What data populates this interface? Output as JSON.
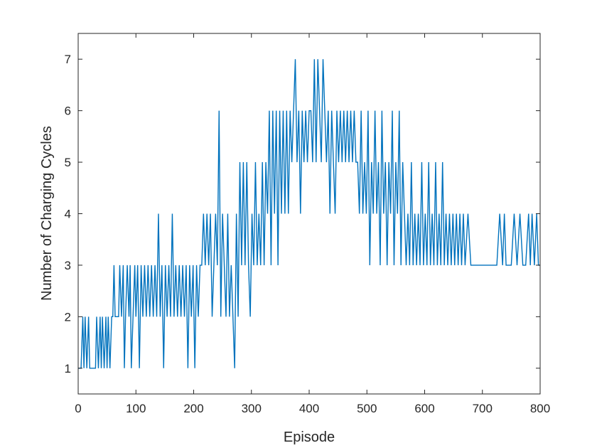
{
  "chart_data": {
    "type": "line",
    "title": "",
    "xlabel": "Episode",
    "ylabel": "Number of Charging Cycles",
    "xlim": [
      0,
      800
    ],
    "ylim": [
      0.5,
      7.5
    ],
    "xticks": [
      0,
      100,
      200,
      300,
      400,
      500,
      600,
      700,
      800
    ],
    "yticks": [
      1,
      2,
      3,
      4,
      5,
      6,
      7
    ],
    "grid": false,
    "legend": "none",
    "series": [
      {
        "color": "#0072BD",
        "x": [
          0,
          5,
          8,
          10,
          12,
          15,
          18,
          20,
          25,
          30,
          32,
          35,
          38,
          40,
          42,
          45,
          48,
          50,
          52,
          55,
          58,
          60,
          62,
          64,
          66,
          70,
          72,
          75,
          78,
          80,
          82,
          85,
          88,
          90,
          92,
          95,
          98,
          100,
          103,
          106,
          109,
          112,
          115,
          118,
          121,
          124,
          127,
          130,
          133,
          136,
          139,
          142,
          145,
          148,
          151,
          154,
          157,
          160,
          163,
          166,
          169,
          172,
          175,
          178,
          181,
          184,
          187,
          190,
          193,
          196,
          199,
          202,
          205,
          208,
          211,
          214,
          217,
          220,
          223,
          226,
          229,
          232,
          235,
          238,
          241,
          244,
          247,
          250,
          253,
          256,
          259,
          262,
          265,
          268,
          271,
          274,
          277,
          280,
          283,
          286,
          289,
          292,
          295,
          298,
          301,
          304,
          307,
          310,
          313,
          316,
          319,
          322,
          325,
          328,
          331,
          334,
          337,
          340,
          343,
          346,
          349,
          352,
          355,
          358,
          361,
          364,
          367,
          370,
          373,
          376,
          379,
          382,
          385,
          388,
          391,
          394,
          397,
          400,
          403,
          406,
          409,
          412,
          415,
          418,
          421,
          424,
          427,
          430,
          433,
          436,
          439,
          442,
          445,
          448,
          451,
          454,
          457,
          460,
          463,
          466,
          469,
          472,
          475,
          478,
          481,
          484,
          487,
          490,
          493,
          496,
          499,
          502,
          505,
          508,
          511,
          514,
          517,
          520,
          523,
          526,
          529,
          532,
          535,
          538,
          541,
          544,
          547,
          550,
          553,
          556,
          559,
          562,
          565,
          568,
          571,
          574,
          577,
          580,
          583,
          586,
          589,
          592,
          595,
          598,
          601,
          604,
          607,
          610,
          613,
          616,
          619,
          622,
          625,
          628,
          631,
          634,
          637,
          640,
          643,
          646,
          649,
          652,
          655,
          658,
          661,
          664,
          667,
          670,
          675,
          680,
          685,
          690,
          695,
          700,
          705,
          710,
          715,
          720,
          725,
          730,
          735,
          738,
          741,
          744,
          747,
          750,
          755,
          760,
          765,
          770,
          775,
          780,
          783,
          786,
          790,
          794,
          797,
          800
        ],
        "y": [
          1,
          1,
          2,
          1,
          2,
          1,
          2,
          1,
          1,
          1,
          2,
          1,
          2,
          1,
          2,
          1,
          2,
          1,
          2,
          1,
          2,
          2,
          3,
          2,
          2,
          2,
          3,
          2,
          3,
          1,
          2,
          3,
          2,
          3,
          1,
          2,
          3,
          2,
          3,
          1,
          3,
          2,
          3,
          2,
          3,
          2,
          3,
          2,
          3,
          2,
          4,
          2,
          3,
          1,
          3,
          2,
          3,
          2,
          4,
          2,
          3,
          2,
          3,
          2,
          3,
          2,
          3,
          1,
          3,
          2,
          3,
          1,
          3,
          2,
          3,
          3,
          4,
          3,
          4,
          3,
          4,
          2,
          3,
          4,
          3,
          6,
          2,
          4,
          3,
          2,
          4,
          2,
          3,
          2,
          1,
          4,
          2,
          5,
          3,
          5,
          3,
          5,
          3,
          2,
          4,
          3,
          5,
          3,
          4,
          3,
          5,
          3,
          5,
          4,
          6,
          3,
          6,
          4,
          6,
          3,
          6,
          4,
          6,
          4,
          6,
          4,
          6,
          5,
          6,
          7,
          5,
          6,
          4,
          6,
          5,
          6,
          5,
          6,
          6,
          5,
          7,
          5,
          7,
          6,
          5,
          7,
          6,
          5,
          6,
          4,
          6,
          5,
          4,
          6,
          5,
          6,
          5,
          6,
          5,
          6,
          5,
          6,
          5,
          6,
          5,
          5,
          4,
          6,
          4,
          5,
          4,
          6,
          3,
          5,
          4,
          6,
          4,
          5,
          3,
          6,
          4,
          5,
          3,
          5,
          4,
          6,
          3,
          5,
          4,
          6,
          3,
          5,
          4,
          3,
          4,
          3,
          5,
          3,
          4,
          3,
          4,
          3,
          5,
          3,
          4,
          3,
          5,
          3,
          4,
          3,
          5,
          3,
          4,
          3,
          5,
          3,
          4,
          3,
          4,
          3,
          4,
          3,
          4,
          3,
          4,
          3,
          4,
          3,
          4,
          3,
          3,
          3,
          3,
          3,
          3,
          3,
          3,
          3,
          3,
          4,
          3,
          4,
          3,
          3,
          3,
          3,
          4,
          3,
          4,
          3,
          3,
          4,
          3,
          4,
          3,
          4,
          3,
          3
        ]
      }
    ]
  }
}
